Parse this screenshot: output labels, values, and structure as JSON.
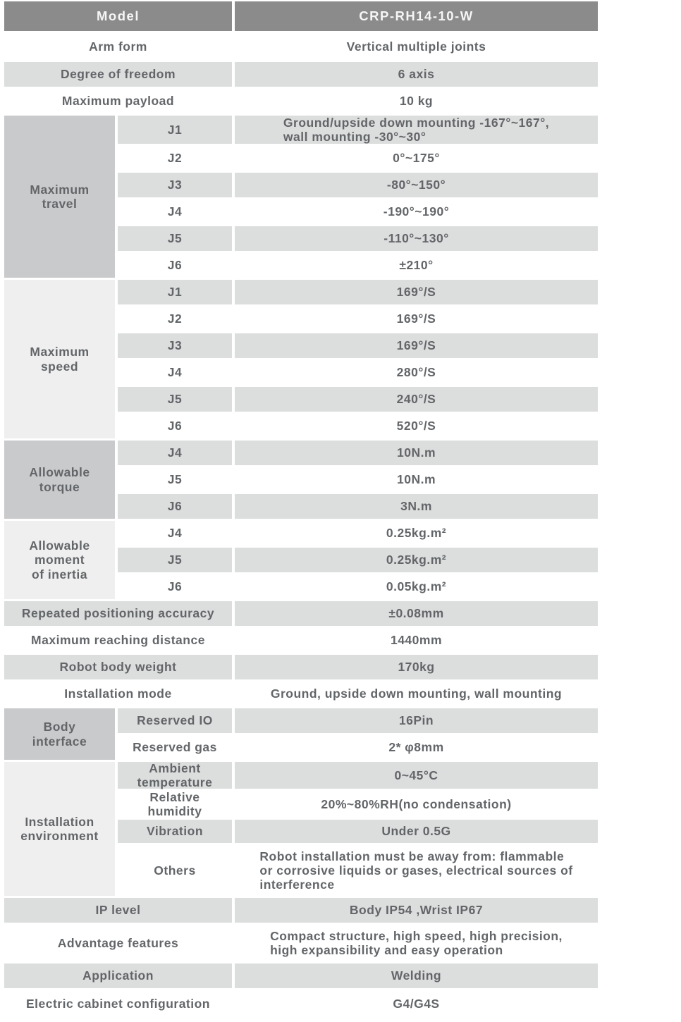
{
  "table": {
    "header": {
      "label": "Model",
      "value": "CRP-RH14-10-W"
    },
    "sections": [
      {
        "kind": "simple",
        "label": "Arm form",
        "value": "Vertical multiple joints",
        "shade": "white"
      },
      {
        "kind": "simple",
        "label": "Degree of freedom",
        "value": "6 axis",
        "shade": "gray"
      },
      {
        "kind": "simple",
        "label": "Maximum payload",
        "value": "10 kg",
        "shade": "white"
      },
      {
        "kind": "group",
        "label": "Maximum\ntravel",
        "tone": "dark",
        "rows": [
          {
            "sub": "J1",
            "value": "Ground/upside down mounting -167°~167°,\nwall mounting -30°~30°",
            "shade": "gray",
            "multiline": true
          },
          {
            "sub": "J2",
            "value": "0°~175°",
            "shade": "white"
          },
          {
            "sub": "J3",
            "value": "-80°~150°",
            "shade": "gray"
          },
          {
            "sub": "J4",
            "value": "-190°~190°",
            "shade": "white"
          },
          {
            "sub": "J5",
            "value": "-110°~130°",
            "shade": "gray"
          },
          {
            "sub": "J6",
            "value": "±210°",
            "shade": "white"
          }
        ]
      },
      {
        "kind": "group",
        "label": "Maximum\nspeed",
        "tone": "light",
        "rows": [
          {
            "sub": "J1",
            "value": "169°/S",
            "shade": "gray"
          },
          {
            "sub": "J2",
            "value": "169°/S",
            "shade": "white"
          },
          {
            "sub": "J3",
            "value": "169°/S",
            "shade": "gray"
          },
          {
            "sub": "J4",
            "value": "280°/S",
            "shade": "white"
          },
          {
            "sub": "J5",
            "value": "240°/S",
            "shade": "gray"
          },
          {
            "sub": "J6",
            "value": "520°/S",
            "shade": "white"
          }
        ]
      },
      {
        "kind": "group",
        "label": "Allowable\ntorque",
        "tone": "dark",
        "rows": [
          {
            "sub": "J4",
            "value": "10N.m",
            "shade": "gray"
          },
          {
            "sub": "J5",
            "value": "10N.m",
            "shade": "white"
          },
          {
            "sub": "J6",
            "value": "3N.m",
            "shade": "gray"
          }
        ]
      },
      {
        "kind": "group",
        "label": "Allowable\nmoment\nof inertia",
        "tone": "light",
        "rows": [
          {
            "sub": "J4",
            "value": "0.25kg.m²",
            "shade": "white"
          },
          {
            "sub": "J5",
            "value": "0.25kg.m²",
            "shade": "gray"
          },
          {
            "sub": "J6",
            "value": "0.05kg.m²",
            "shade": "white"
          }
        ]
      },
      {
        "kind": "simple",
        "label": "Repeated positioning accuracy",
        "value": "±0.08mm",
        "shade": "gray"
      },
      {
        "kind": "simple",
        "label": "Maximum reaching distance",
        "value": "1440mm",
        "shade": "white"
      },
      {
        "kind": "simple",
        "label": "Robot body weight",
        "value": "170kg",
        "shade": "gray"
      },
      {
        "kind": "simple",
        "label": "Installation mode",
        "value": "Ground, upside down mounting, wall mounting",
        "shade": "white"
      },
      {
        "kind": "group",
        "label": "Body\ninterface",
        "tone": "dark",
        "rows": [
          {
            "sub": "Reserved IO",
            "value": "16Pin",
            "shade": "gray"
          },
          {
            "sub": "Reserved gas",
            "value": "2* φ8mm",
            "shade": "white"
          }
        ]
      },
      {
        "kind": "group",
        "label": "Installation\nenvironment",
        "tone": "light",
        "rows": [
          {
            "sub": "Ambient\ntemperature",
            "value": "0~45°C",
            "shade": "gray"
          },
          {
            "sub": "Relative\nhumidity",
            "value": "20%~80%RH(no condensation)",
            "shade": "white"
          },
          {
            "sub": "Vibration",
            "value": "Under 0.5G",
            "shade": "gray"
          },
          {
            "sub": "Others",
            "value": "Robot installation must be away from: flammable\nor corrosive liquids or gases, electrical sources of\ninterference",
            "shade": "white",
            "multiline": true
          }
        ]
      },
      {
        "kind": "simple",
        "label": "IP level",
        "value": "Body IP54 ,Wrist IP67",
        "shade": "gray"
      },
      {
        "kind": "simple",
        "label": "Advantage features",
        "value": "Compact structure, high speed, high precision,\nhigh expansibility and easy operation",
        "shade": "white",
        "multiline": true
      },
      {
        "kind": "simple",
        "label": "Application",
        "value": "Welding",
        "shade": "gray"
      },
      {
        "kind": "simple",
        "label": "Electric cabinet configuration",
        "value": "G4/G4S",
        "shade": "white"
      }
    ],
    "colors": {
      "header_bg": "#8b8b8b",
      "header_text": "#f6f6f6",
      "stripe_gray": "#dcdddd",
      "group_dark": "#c9cacb",
      "group_light": "#efefef",
      "text": "#636669"
    }
  }
}
